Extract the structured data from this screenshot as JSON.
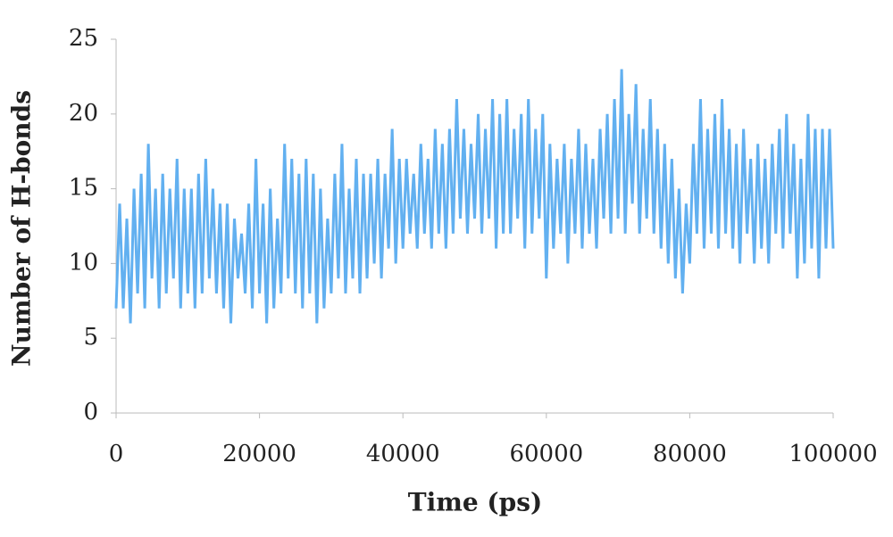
{
  "chart_data": {
    "type": "line",
    "xlabel": "Time (ps)",
    "ylabel": "Number of H-bonds",
    "x": [
      0,
      500,
      1000,
      1500,
      2000,
      2500,
      3000,
      3500,
      4000,
      4500,
      5000,
      5500,
      6000,
      6500,
      7000,
      7500,
      8000,
      8500,
      9000,
      9500,
      10000,
      10500,
      11000,
      11500,
      12000,
      12500,
      13000,
      13500,
      14000,
      14500,
      15000,
      15500,
      16000,
      16500,
      17000,
      17500,
      18000,
      18500,
      19000,
      19500,
      20000,
      20500,
      21000,
      21500,
      22000,
      22500,
      23000,
      23500,
      24000,
      24500,
      25000,
      25500,
      26000,
      26500,
      27000,
      27500,
      28000,
      28500,
      29000,
      29500,
      30000,
      30500,
      31000,
      31500,
      32000,
      32500,
      33000,
      33500,
      34000,
      34500,
      35000,
      35500,
      36000,
      36500,
      37000,
      37500,
      38000,
      38500,
      39000,
      39500,
      40000,
      40500,
      41000,
      41500,
      42000,
      42500,
      43000,
      43500,
      44000,
      44500,
      45000,
      45500,
      46000,
      46500,
      47000,
      47500,
      48000,
      48500,
      49000,
      49500,
      50000,
      50500,
      51000,
      51500,
      52000,
      52500,
      53000,
      53500,
      54000,
      54500,
      55000,
      55500,
      56000,
      56500,
      57000,
      57500,
      58000,
      58500,
      59000,
      59500,
      60000,
      60500,
      61000,
      61500,
      62000,
      62500,
      63000,
      63500,
      64000,
      64500,
      65000,
      65500,
      66000,
      66500,
      67000,
      67500,
      68000,
      68500,
      69000,
      69500,
      70000,
      70500,
      71000,
      71500,
      72000,
      72500,
      73000,
      73500,
      74000,
      74500,
      75000,
      75500,
      76000,
      76500,
      77000,
      77500,
      78000,
      78500,
      79000,
      79500,
      80000,
      80500,
      81000,
      81500,
      82000,
      82500,
      83000,
      83500,
      84000,
      84500,
      85000,
      85500,
      86000,
      86500,
      87000,
      87500,
      88000,
      88500,
      89000,
      89500,
      90000,
      90500,
      91000,
      91500,
      92000,
      92500,
      93000,
      93500,
      94000,
      94500,
      95000,
      95500,
      96000,
      96500,
      97000,
      97500,
      98000,
      98500,
      99000,
      99500,
      100000
    ],
    "values": [
      7,
      14,
      7,
      13,
      6,
      15,
      8,
      16,
      7,
      18,
      9,
      15,
      7,
      16,
      8,
      15,
      9,
      17,
      7,
      15,
      8,
      15,
      7,
      16,
      8,
      17,
      9,
      15,
      8,
      14,
      7,
      14,
      6,
      13,
      9,
      12,
      8,
      14,
      7,
      17,
      8,
      14,
      6,
      15,
      7,
      13,
      8,
      18,
      9,
      17,
      8,
      16,
      7,
      17,
      8,
      16,
      6,
      15,
      7,
      13,
      8,
      16,
      9,
      18,
      8,
      15,
      9,
      17,
      8,
      16,
      9,
      16,
      10,
      17,
      9,
      16,
      11,
      19,
      10,
      17,
      11,
      17,
      12,
      16,
      11,
      18,
      12,
      17,
      11,
      19,
      12,
      18,
      11,
      19,
      12,
      21,
      13,
      19,
      12,
      18,
      13,
      20,
      12,
      19,
      13,
      21,
      11,
      20,
      12,
      21,
      12,
      19,
      13,
      20,
      11,
      21,
      12,
      19,
      13,
      20,
      9,
      18,
      11,
      17,
      12,
      18,
      10,
      17,
      12,
      19,
      11,
      18,
      12,
      17,
      11,
      19,
      13,
      20,
      12,
      21,
      13,
      23,
      12,
      20,
      14,
      22,
      12,
      19,
      13,
      21,
      12,
      19,
      11,
      18,
      10,
      17,
      9,
      15,
      8,
      14,
      10,
      18,
      12,
      21,
      11,
      19,
      12,
      20,
      11,
      21,
      12,
      19,
      11,
      18,
      10,
      19,
      12,
      17,
      10,
      18,
      11,
      17,
      10,
      18,
      12,
      19,
      11,
      20,
      12,
      18,
      9,
      17,
      10,
      20,
      11,
      19,
      9,
      19,
      11,
      19,
      11
    ],
    "color": "#62b0f0",
    "xlim": [
      0,
      100000
    ],
    "xticks": [
      0,
      20000,
      40000,
      60000,
      80000,
      100000
    ],
    "ylim": [
      0,
      25
    ],
    "yticks": [
      0,
      5,
      10,
      15,
      20,
      25
    ],
    "grid": false
  }
}
